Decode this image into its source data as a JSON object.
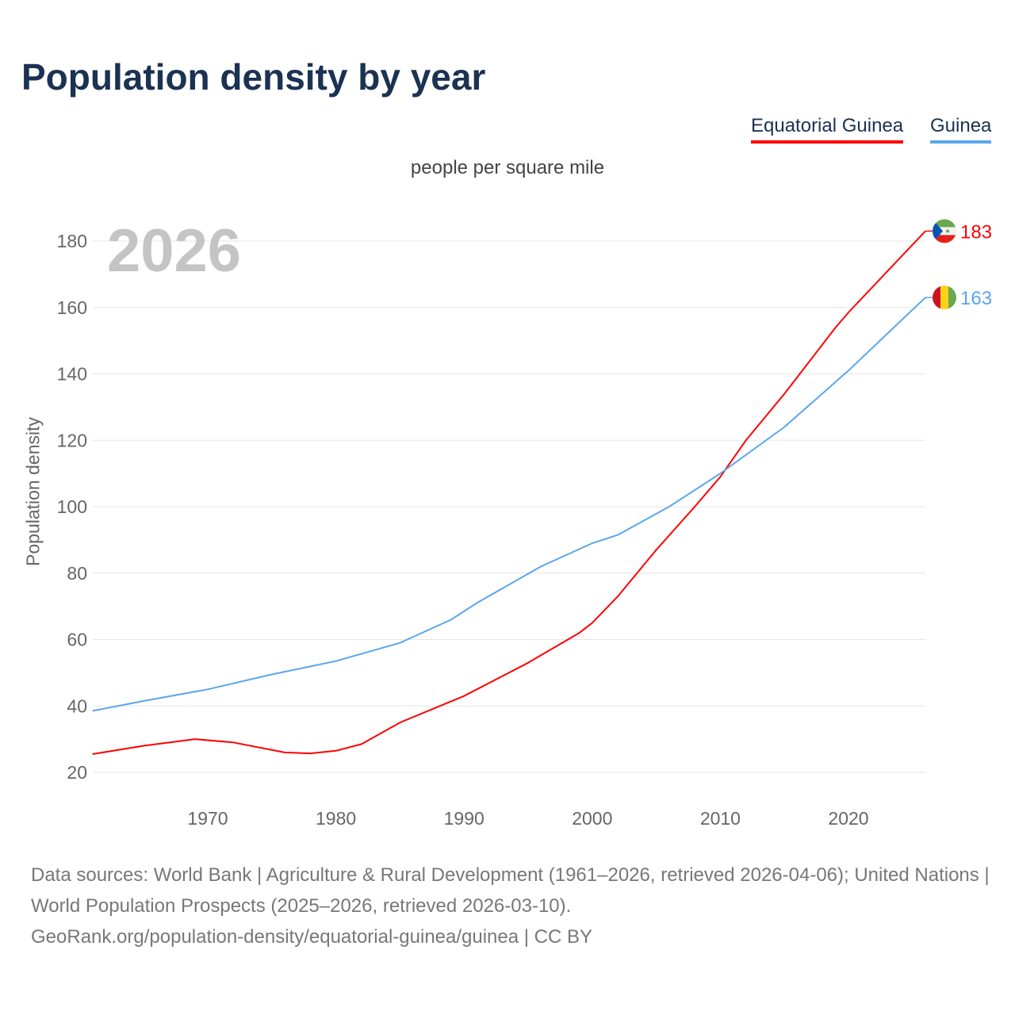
{
  "title": "Population density by year",
  "legend": [
    {
      "label": "Equatorial Guinea",
      "color": "#ff0000"
    },
    {
      "label": "Guinea",
      "color": "#5aa6ec"
    }
  ],
  "chart_data": {
    "type": "line",
    "title": "Population density by year",
    "subtitle": "people per square mile",
    "ylabel": "Population density",
    "xlabel": "",
    "year_watermark": "2026",
    "xlim": [
      1961,
      2026
    ],
    "ylim": [
      20,
      185
    ],
    "x_ticks": [
      1970,
      1980,
      1990,
      2000,
      2010,
      2020
    ],
    "y_ticks": [
      20,
      40,
      60,
      80,
      100,
      120,
      140,
      160,
      180
    ],
    "grid": true,
    "legend_position": "top-right",
    "series": [
      {
        "name": "Equatorial Guinea",
        "color": "#ff0000",
        "end_label": "183",
        "flag": "equatorial-guinea",
        "x": [
          1961,
          1965,
          1969,
          1972,
          1976,
          1978,
          1980,
          1982,
          1985,
          1990,
          1995,
          1999,
          2000,
          2002,
          2005,
          2008,
          2010,
          2012,
          2015,
          2019,
          2020,
          2026
        ],
        "y": [
          25.5,
          28,
          30,
          29,
          26,
          25.7,
          26.5,
          28.5,
          35,
          43,
          53,
          62,
          65,
          73,
          87,
          100,
          109,
          120,
          134,
          154,
          158.5,
          183
        ]
      },
      {
        "name": "Guinea",
        "color": "#5aa6ec",
        "end_label": "163",
        "flag": "guinea",
        "x": [
          1961,
          1965,
          1970,
          1975,
          1980,
          1985,
          1989,
          1991,
          1996,
          2000,
          2002,
          2006,
          2010,
          2015,
          2020,
          2026
        ],
        "y": [
          38.5,
          41.5,
          45,
          49.5,
          53.5,
          59,
          66,
          71,
          82,
          89,
          91.5,
          100,
          110,
          124,
          141,
          163
        ]
      }
    ]
  },
  "footer": {
    "line1": "Data sources: World Bank | Agriculture & Rural Development (1961–2026, retrieved 2026-04-06); United Nations | World Population Prospects (2025–2026, retrieved 2026-03-10).",
    "line2": "GeoRank.org/population-density/equatorial-guinea/guinea | CC BY"
  }
}
